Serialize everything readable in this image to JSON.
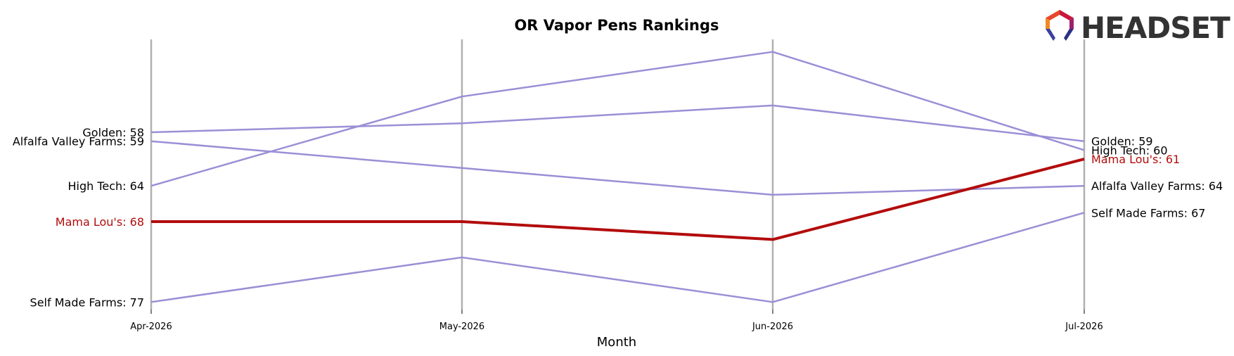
{
  "chart_data": {
    "type": "line",
    "title": "OR Vapor Pens Rankings",
    "xlabel": "Month",
    "ylabel": "",
    "x": [
      "Apr-2026",
      "May-2026",
      "Jun-2026",
      "Jul-2026"
    ],
    "y_inverted": true,
    "ylim": [
      79,
      52
    ],
    "series": [
      {
        "name": "Golden",
        "values": [
          58,
          57,
          55,
          59
        ],
        "color": "#9b8fd6",
        "highlight": false
      },
      {
        "name": "Alfalfa Valley Farms",
        "values": [
          59,
          62,
          65,
          64
        ],
        "color": "#9b8fd6",
        "highlight": false
      },
      {
        "name": "High Tech",
        "values": [
          64,
          54,
          49,
          60
        ],
        "color": "#9b8fd6",
        "highlight": false
      },
      {
        "name": "Mama Lou's",
        "values": [
          68,
          68,
          70,
          61
        ],
        "color": "#b30c0c",
        "highlight": true
      },
      {
        "name": "Self Made Farms",
        "values": [
          77,
          72,
          77,
          67
        ],
        "color": "#9b8fd6",
        "highlight": false
      }
    ],
    "grid": "vertical lines at each month"
  },
  "brand": {
    "logo_text": "HEADSET",
    "logo_icon": "headset-hexagon-logo-icon",
    "colors": {
      "highlight": "#b30c0c",
      "series": "#9b8fd6",
      "gridline": "#b0b0b0"
    }
  }
}
